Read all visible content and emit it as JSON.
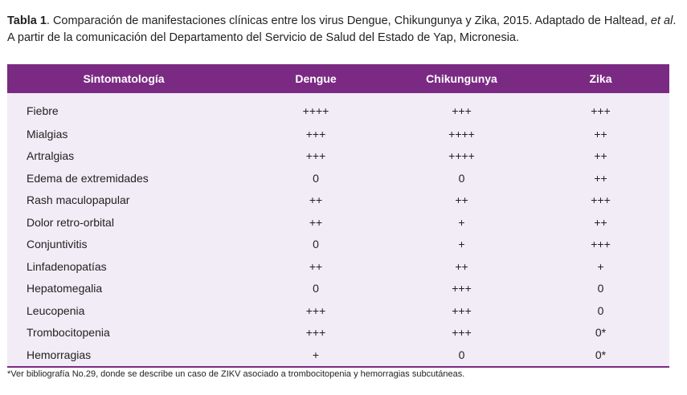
{
  "caption": {
    "label": "Tabla 1",
    "text_part1": ". Comparación de manifestaciones clínicas entre los virus Dengue, Chikungunya y Zika, 2015. Adaptado de Haltead, ",
    "italic": "et al",
    "text_part2": ".",
    "line2": "A partir de la comunicación del Departamento del Servicio de Salud del Estado de Yap, Micronesia."
  },
  "table": {
    "headers": [
      "Sintomatología",
      "Dengue",
      "Chikungunya",
      "Zika"
    ],
    "rows": [
      {
        "symptom": "Fiebre",
        "dengue": "++++",
        "chikungunya": "+++",
        "zika": "+++"
      },
      {
        "symptom": "Mialgias",
        "dengue": "+++",
        "chikungunya": "++++",
        "zika": "++"
      },
      {
        "symptom": "Artralgias",
        "dengue": "+++",
        "chikungunya": "++++",
        "zika": "++"
      },
      {
        "symptom": "Edema de extremidades",
        "dengue": "0",
        "chikungunya": "0",
        "zika": "++"
      },
      {
        "symptom": "Rash maculopapular",
        "dengue": "++",
        "chikungunya": "++",
        "zika": "+++"
      },
      {
        "symptom": "Dolor retro-orbital",
        "dengue": "++",
        "chikungunya": "+",
        "zika": "++"
      },
      {
        "symptom": "Conjuntivitis",
        "dengue": "0",
        "chikungunya": "+",
        "zika": "+++"
      },
      {
        "symptom": "Linfadenopatías",
        "dengue": "++",
        "chikungunya": "++",
        "zika": "+"
      },
      {
        "symptom": "Hepatomegalia",
        "dengue": "0",
        "chikungunya": "+++",
        "zika": "0"
      },
      {
        "symptom": "Leucopenia",
        "dengue": "+++",
        "chikungunya": "+++",
        "zika": "0"
      },
      {
        "symptom": "Trombocitopenia",
        "dengue": "+++",
        "chikungunya": "+++",
        "zika": "0*"
      },
      {
        "symptom": "Hemorragias",
        "dengue": "+",
        "chikungunya": "0",
        "zika": "0*"
      }
    ]
  },
  "footnote": "*Ver bibliografía No.29, donde se describe un caso de ZIKV asociado a trombocitopenia y hemorragias subcutáneas.",
  "colors": {
    "header_bg": "#7b2a83",
    "body_bg": "#f1ecf6"
  }
}
